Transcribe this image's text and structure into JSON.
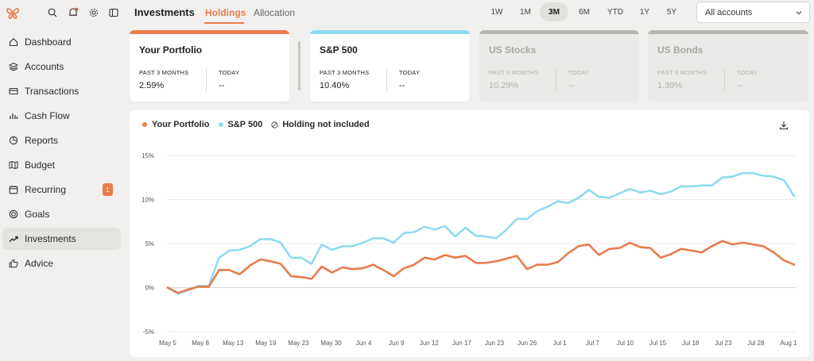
{
  "sidebar": {
    "items": [
      {
        "label": "Dashboard",
        "icon": "home-icon"
      },
      {
        "label": "Accounts",
        "icon": "layers-icon"
      },
      {
        "label": "Transactions",
        "icon": "credit-card-icon"
      },
      {
        "label": "Cash Flow",
        "icon": "bar-chart-icon"
      },
      {
        "label": "Reports",
        "icon": "pie-chart-icon"
      },
      {
        "label": "Budget",
        "icon": "map-icon"
      },
      {
        "label": "Recurring",
        "icon": "calendar-icon",
        "badge": "1"
      },
      {
        "label": "Goals",
        "icon": "target-icon"
      },
      {
        "label": "Investments",
        "icon": "trending-up-icon"
      },
      {
        "label": "Advice",
        "icon": "thumbs-up-icon"
      }
    ],
    "active": "Investments"
  },
  "header": {
    "title": "Investments",
    "tabs": [
      "Holdings",
      "Allocation"
    ],
    "active_tab": "Holdings",
    "ranges": [
      "1W",
      "1M",
      "3M",
      "6M",
      "YTD",
      "1Y",
      "5Y"
    ],
    "active_range": "3M",
    "account_select": "All accounts"
  },
  "cards": [
    {
      "title": "Your Portfolio",
      "label1": "PAST 3 MONTHS",
      "value1": "2.59%",
      "label2": "TODAY",
      "value2": "--",
      "color": "#ea7b4c",
      "enabled": true
    },
    {
      "title": "S&P 500",
      "label1": "PAST 3 MONTHS",
      "value1": "10.40%",
      "label2": "TODAY",
      "value2": "--",
      "color": "#8fdaf2",
      "enabled": true
    },
    {
      "title": "US Stocks",
      "label1": "PAST 3 MONTHS",
      "value1": "10.29%",
      "label2": "TODAY",
      "value2": "--",
      "color": "#b8b6b2",
      "enabled": false
    },
    {
      "title": "US Bonds",
      "label1": "PAST 3 MONTHS",
      "value1": "1.39%",
      "label2": "TODAY",
      "value2": "--",
      "color": "#b8b6b2",
      "enabled": false
    }
  ],
  "legend": {
    "portfolio": "Your Portfolio",
    "sp500": "S&P 500",
    "excluded": "Holding not included"
  },
  "colors": {
    "accent": "#ea7b4c",
    "portfolio": "#ea7b4c",
    "sp500": "#8fdaf2"
  },
  "chart_data": {
    "type": "line",
    "y_ticks": [
      "15%",
      "10%",
      "5%",
      "0%",
      "-5%"
    ],
    "ylim": [
      -5,
      15
    ],
    "x_ticks": [
      "May 5",
      "May 8",
      "May 13",
      "May 19",
      "May 23",
      "May 30",
      "Jun 4",
      "Jun 9",
      "Jun 12",
      "Jun 17",
      "Jun 23",
      "Jun 26",
      "Jul 1",
      "Jul 7",
      "Jul 10",
      "Jul 15",
      "Jul 18",
      "Jul 23",
      "Jul 28",
      "Aug 1"
    ],
    "series": [
      {
        "name": "Your Portfolio",
        "color": "#ea7b4c",
        "values": [
          0,
          -0.6,
          -0.2,
          0.1,
          0.1,
          2.0,
          2.0,
          1.5,
          2.5,
          3.2,
          3.0,
          2.7,
          1.3,
          1.2,
          1.0,
          2.4,
          1.7,
          2.3,
          2.1,
          2.2,
          2.6,
          2.0,
          1.3,
          2.2,
          2.6,
          3.4,
          3.2,
          3.7,
          3.4,
          3.6,
          2.8,
          2.8,
          3.0,
          3.3,
          3.6,
          2.1,
          2.6,
          2.6,
          2.9,
          3.9,
          4.7,
          4.9,
          3.7,
          4.4,
          4.5,
          5.1,
          4.6,
          4.5,
          3.4,
          3.8,
          4.4,
          4.2,
          4.0,
          4.7,
          5.3,
          4.9,
          5.1,
          4.9,
          4.7,
          4.0,
          3.1,
          2.6
        ]
      },
      {
        "name": "S&P 500",
        "color": "#8fdaf2",
        "values": [
          0,
          -0.7,
          -0.3,
          0.2,
          0.2,
          3.4,
          4.2,
          4.3,
          4.7,
          5.5,
          5.5,
          5.1,
          3.4,
          3.4,
          2.7,
          4.9,
          4.3,
          4.7,
          4.7,
          5.1,
          5.6,
          5.6,
          5.1,
          6.2,
          6.3,
          6.9,
          6.6,
          7.0,
          5.8,
          6.8,
          5.9,
          5.8,
          5.6,
          6.6,
          7.8,
          7.8,
          8.7,
          9.2,
          9.8,
          9.6,
          10.2,
          11.1,
          10.3,
          10.2,
          10.7,
          11.2,
          10.8,
          11.0,
          10.6,
          10.9,
          11.5,
          11.5,
          11.6,
          11.6,
          12.5,
          12.6,
          13.0,
          13.0,
          12.7,
          12.6,
          12.2,
          10.4
        ]
      }
    ]
  }
}
